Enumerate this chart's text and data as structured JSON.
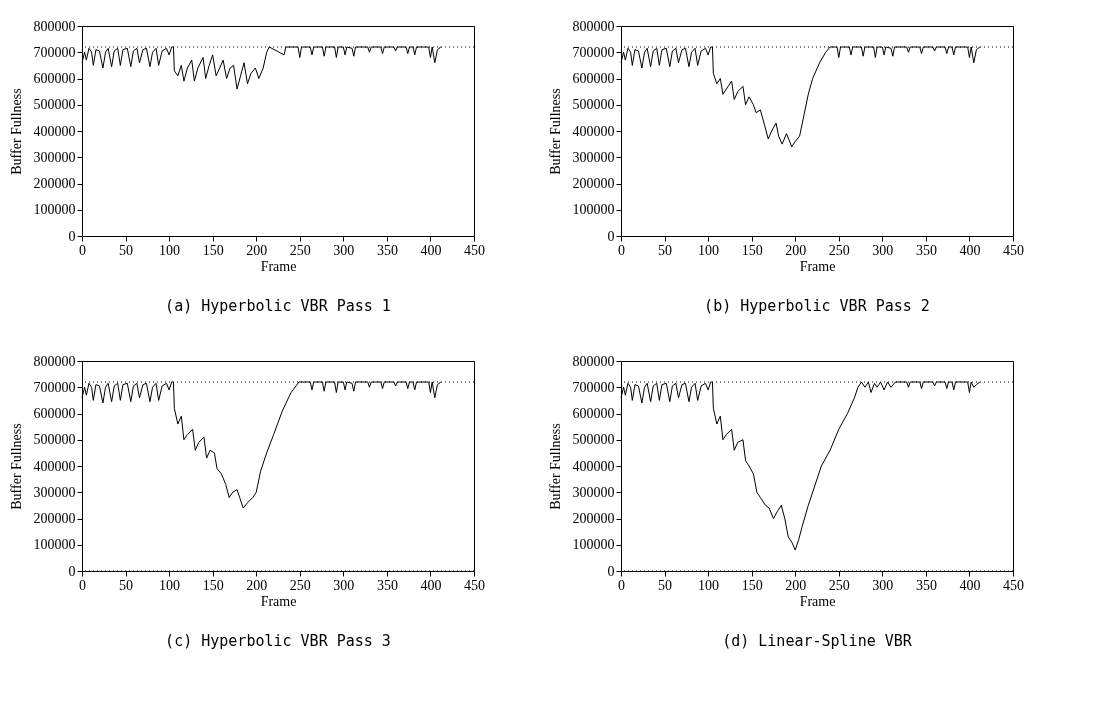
{
  "chart_data": [
    {
      "type": "line",
      "title": "(a) Hyperbolic VBR Pass 1",
      "xlabel": "Frame",
      "ylabel": "Buffer Fullness",
      "xlim": [
        0,
        450
      ],
      "xticks": [
        0,
        50,
        100,
        150,
        200,
        250,
        300,
        350,
        400,
        450
      ],
      "ylim": [
        0,
        800000
      ],
      "yticks": [
        0,
        100000,
        200000,
        300000,
        400000,
        500000,
        600000,
        700000,
        800000
      ],
      "grid": false,
      "legend": false,
      "marker": "none",
      "line_style": "solid",
      "ref_lines": [
        {
          "axis": "y",
          "value": 720000,
          "line_style": "dotted"
        }
      ],
      "series": [
        {
          "color": "#000000",
          "x": [
            0,
            3,
            5,
            8,
            11,
            13,
            16,
            20,
            24,
            27,
            30,
            34,
            37,
            41,
            44,
            47,
            52,
            56,
            59,
            63,
            66,
            70,
            74,
            78,
            81,
            85,
            88,
            92,
            97,
            100,
            103,
            105,
            106,
            110,
            114,
            117,
            121,
            126,
            129,
            133,
            139,
            142,
            146,
            150,
            154,
            158,
            162,
            166,
            170,
            174,
            178,
            182,
            186,
            190,
            194,
            199,
            203,
            208,
            212,
            215,
            232,
            234,
            248,
            250,
            252,
            262,
            264,
            266,
            276,
            278,
            280,
            290,
            292,
            294,
            300,
            302,
            304,
            310,
            312,
            314,
            328,
            330,
            332,
            343,
            345,
            347,
            358,
            360,
            362,
            372,
            374,
            376,
            380,
            382,
            384,
            398,
            400,
            402,
            405,
            408,
            412
          ],
          "values": [
            660000,
            700000,
            670000,
            715000,
            700000,
            650000,
            710000,
            705000,
            640000,
            700000,
            715000,
            645000,
            705000,
            715000,
            650000,
            710000,
            715000,
            645000,
            705000,
            715000,
            660000,
            710000,
            715000,
            645000,
            700000,
            715000,
            650000,
            705000,
            715000,
            690000,
            720000,
            720000,
            630000,
            610000,
            650000,
            590000,
            640000,
            670000,
            590000,
            640000,
            680000,
            600000,
            650000,
            690000,
            610000,
            640000,
            670000,
            600000,
            640000,
            650000,
            560000,
            610000,
            660000,
            580000,
            620000,
            640000,
            600000,
            640000,
            700000,
            720000,
            690000,
            720000,
            720000,
            680000,
            720000,
            720000,
            690000,
            720000,
            720000,
            685000,
            720000,
            720000,
            680000,
            720000,
            720000,
            690000,
            720000,
            715000,
            685000,
            720000,
            720000,
            700000,
            720000,
            720000,
            695000,
            720000,
            720000,
            705000,
            720000,
            720000,
            695000,
            720000,
            720000,
            690000,
            720000,
            720000,
            680000,
            720000,
            660000,
            710000,
            720000
          ]
        }
      ]
    },
    {
      "type": "line",
      "title": "(b) Hyperbolic VBR Pass 2",
      "xlabel": "Frame",
      "ylabel": "Buffer Fullness",
      "xlim": [
        0,
        450
      ],
      "xticks": [
        0,
        50,
        100,
        150,
        200,
        250,
        300,
        350,
        400,
        450
      ],
      "ylim": [
        0,
        800000
      ],
      "yticks": [
        0,
        100000,
        200000,
        300000,
        400000,
        500000,
        600000,
        700000,
        800000
      ],
      "grid": false,
      "legend": false,
      "marker": "none",
      "line_style": "solid",
      "ref_lines": [
        {
          "axis": "y",
          "value": 720000,
          "line_style": "dotted"
        }
      ],
      "series": [
        {
          "color": "#000000",
          "x": [
            0,
            3,
            5,
            8,
            11,
            13,
            16,
            20,
            24,
            27,
            30,
            34,
            37,
            41,
            44,
            47,
            52,
            56,
            59,
            63,
            66,
            70,
            74,
            78,
            81,
            85,
            88,
            92,
            97,
            100,
            103,
            105,
            106,
            110,
            114,
            117,
            121,
            127,
            130,
            134,
            140,
            143,
            147,
            152,
            155,
            160,
            165,
            169,
            173,
            178,
            181,
            185,
            190,
            196,
            200,
            205,
            210,
            215,
            220,
            228,
            235,
            240,
            248,
            250,
            252,
            262,
            264,
            266,
            276,
            278,
            280,
            290,
            292,
            294,
            300,
            302,
            304,
            310,
            312,
            314,
            328,
            330,
            332,
            343,
            345,
            347,
            358,
            360,
            362,
            372,
            374,
            376,
            380,
            382,
            384,
            398,
            400,
            402,
            405,
            408,
            412
          ],
          "values": [
            660000,
            700000,
            670000,
            715000,
            700000,
            650000,
            710000,
            705000,
            640000,
            700000,
            715000,
            645000,
            705000,
            715000,
            650000,
            710000,
            715000,
            645000,
            705000,
            715000,
            660000,
            710000,
            715000,
            645000,
            700000,
            715000,
            650000,
            705000,
            715000,
            690000,
            720000,
            720000,
            620000,
            580000,
            600000,
            540000,
            560000,
            590000,
            520000,
            550000,
            570000,
            500000,
            530000,
            500000,
            470000,
            480000,
            420000,
            370000,
            400000,
            430000,
            380000,
            350000,
            390000,
            340000,
            360000,
            380000,
            460000,
            540000,
            600000,
            660000,
            700000,
            720000,
            720000,
            680000,
            720000,
            720000,
            690000,
            720000,
            720000,
            685000,
            720000,
            720000,
            680000,
            720000,
            720000,
            690000,
            720000,
            715000,
            685000,
            720000,
            720000,
            700000,
            720000,
            720000,
            695000,
            720000,
            720000,
            705000,
            720000,
            720000,
            695000,
            720000,
            720000,
            690000,
            720000,
            720000,
            680000,
            720000,
            660000,
            710000,
            720000
          ]
        }
      ]
    },
    {
      "type": "line",
      "title": "(c) Hyperbolic VBR Pass 3",
      "xlabel": "Frame",
      "ylabel": "Buffer Fullness",
      "xlim": [
        0,
        450
      ],
      "xticks": [
        0,
        50,
        100,
        150,
        200,
        250,
        300,
        350,
        400,
        450
      ],
      "ylim": [
        0,
        800000
      ],
      "yticks": [
        0,
        100000,
        200000,
        300000,
        400000,
        500000,
        600000,
        700000,
        800000
      ],
      "grid": false,
      "legend": false,
      "marker": "none",
      "line_style": "solid",
      "ref_lines": [
        {
          "axis": "y",
          "value": 720000,
          "line_style": "dotted"
        },
        {
          "axis": "y",
          "value": 0,
          "line_style": "dotted"
        }
      ],
      "series": [
        {
          "color": "#000000",
          "x": [
            0,
            3,
            5,
            8,
            11,
            13,
            16,
            20,
            24,
            27,
            30,
            34,
            37,
            41,
            44,
            47,
            52,
            56,
            59,
            63,
            66,
            70,
            74,
            78,
            81,
            85,
            88,
            92,
            97,
            100,
            103,
            105,
            106,
            110,
            114,
            117,
            121,
            127,
            130,
            134,
            140,
            143,
            147,
            152,
            155,
            160,
            165,
            169,
            173,
            178,
            181,
            185,
            190,
            196,
            200,
            205,
            212,
            220,
            230,
            240,
            249,
            262,
            264,
            266,
            276,
            278,
            280,
            290,
            292,
            294,
            300,
            302,
            304,
            310,
            312,
            314,
            328,
            330,
            332,
            343,
            345,
            347,
            358,
            360,
            362,
            372,
            374,
            376,
            380,
            382,
            384,
            398,
            400,
            402,
            405,
            408,
            412
          ],
          "values": [
            660000,
            700000,
            670000,
            715000,
            700000,
            650000,
            710000,
            705000,
            640000,
            700000,
            715000,
            645000,
            705000,
            715000,
            650000,
            710000,
            715000,
            645000,
            705000,
            715000,
            660000,
            710000,
            715000,
            645000,
            700000,
            715000,
            650000,
            705000,
            715000,
            690000,
            720000,
            720000,
            620000,
            560000,
            590000,
            500000,
            520000,
            540000,
            460000,
            490000,
            510000,
            430000,
            460000,
            450000,
            390000,
            370000,
            330000,
            280000,
            300000,
            310000,
            280000,
            240000,
            260000,
            280000,
            300000,
            380000,
            450000,
            520000,
            610000,
            680000,
            720000,
            720000,
            690000,
            720000,
            720000,
            685000,
            720000,
            720000,
            680000,
            720000,
            720000,
            690000,
            720000,
            715000,
            685000,
            720000,
            720000,
            700000,
            720000,
            720000,
            695000,
            720000,
            720000,
            705000,
            720000,
            720000,
            695000,
            720000,
            720000,
            690000,
            720000,
            720000,
            680000,
            720000,
            660000,
            710000,
            720000
          ]
        }
      ]
    },
    {
      "type": "line",
      "title": "(d) Linear-Spline VBR",
      "xlabel": "Frame",
      "ylabel": "Buffer Fullness",
      "xlim": [
        0,
        450
      ],
      "xticks": [
        0,
        50,
        100,
        150,
        200,
        250,
        300,
        350,
        400,
        450
      ],
      "ylim": [
        0,
        800000
      ],
      "yticks": [
        0,
        100000,
        200000,
        300000,
        400000,
        500000,
        600000,
        700000,
        800000
      ],
      "grid": false,
      "legend": false,
      "marker": "none",
      "line_style": "solid",
      "ref_lines": [
        {
          "axis": "y",
          "value": 720000,
          "line_style": "dotted"
        },
        {
          "axis": "y",
          "value": 0,
          "line_style": "dotted"
        }
      ],
      "series": [
        {
          "color": "#000000",
          "x": [
            0,
            3,
            5,
            8,
            11,
            13,
            16,
            20,
            24,
            27,
            30,
            34,
            37,
            41,
            44,
            47,
            52,
            56,
            59,
            63,
            66,
            70,
            74,
            78,
            81,
            85,
            88,
            92,
            97,
            100,
            103,
            105,
            106,
            110,
            114,
            117,
            121,
            127,
            130,
            134,
            140,
            143,
            147,
            152,
            156,
            160,
            166,
            170,
            175,
            180,
            184,
            188,
            192,
            196,
            200,
            204,
            208,
            215,
            222,
            230,
            240,
            250,
            260,
            268,
            272,
            276,
            280,
            284,
            287,
            291,
            294,
            298,
            302,
            306,
            310,
            315,
            328,
            330,
            332,
            343,
            345,
            347,
            358,
            360,
            362,
            372,
            374,
            376,
            380,
            382,
            384,
            398,
            400,
            402,
            405,
            408,
            412
          ],
          "values": [
            660000,
            700000,
            670000,
            715000,
            700000,
            650000,
            710000,
            705000,
            640000,
            700000,
            715000,
            645000,
            705000,
            715000,
            650000,
            710000,
            715000,
            645000,
            705000,
            715000,
            660000,
            710000,
            715000,
            645000,
            700000,
            715000,
            650000,
            705000,
            715000,
            690000,
            720000,
            720000,
            620000,
            560000,
            590000,
            500000,
            520000,
            540000,
            460000,
            490000,
            500000,
            420000,
            400000,
            370000,
            300000,
            280000,
            250000,
            240000,
            200000,
            230000,
            250000,
            200000,
            130000,
            110000,
            80000,
            120000,
            170000,
            250000,
            320000,
            400000,
            460000,
            540000,
            600000,
            660000,
            700000,
            720000,
            700000,
            720000,
            680000,
            715000,
            700000,
            720000,
            690000,
            720000,
            700000,
            720000,
            720000,
            700000,
            720000,
            720000,
            695000,
            720000,
            720000,
            705000,
            720000,
            720000,
            695000,
            720000,
            720000,
            690000,
            720000,
            720000,
            680000,
            720000,
            700000,
            710000,
            720000
          ]
        }
      ]
    }
  ]
}
